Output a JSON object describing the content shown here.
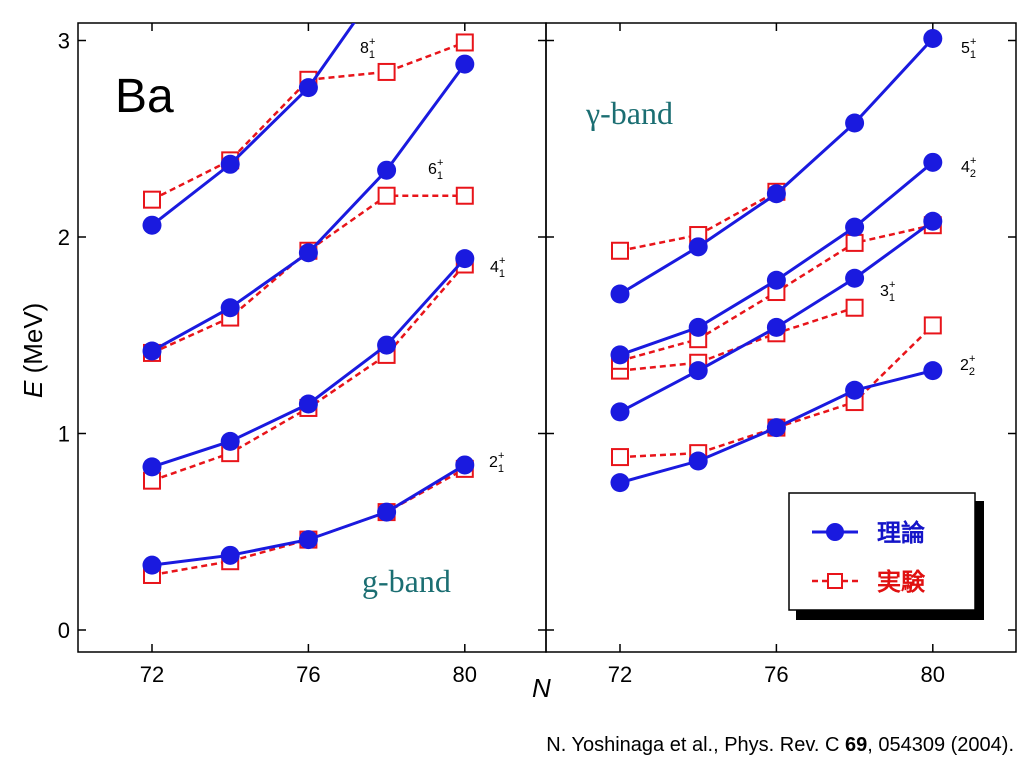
{
  "chart_data": [
    {
      "type": "line",
      "element_label": "Ba",
      "band_label": "g-band",
      "xlabel": "N",
      "ylabel_italic": "E",
      "ylabel_unit": " (MeV)",
      "x_ticks": [
        72,
        76,
        80
      ],
      "y_ticks": [
        0,
        1,
        2,
        3
      ],
      "xlim": [
        70,
        82
      ],
      "ylim": [
        -0.1,
        3.05
      ],
      "series": [
        {
          "state": "2_1^+",
          "label_main": "2",
          "label_sub": "1",
          "label_sup": "+",
          "kind": "theory",
          "x": [
            72,
            74,
            76,
            78,
            80
          ],
          "y": [
            0.33,
            0.38,
            0.46,
            0.6,
            0.84
          ]
        },
        {
          "state": "2_1^+",
          "kind": "experiment",
          "x": [
            72,
            74,
            76,
            78,
            80
          ],
          "y": [
            0.28,
            0.35,
            0.46,
            0.6,
            0.82
          ]
        },
        {
          "state": "4_1^+",
          "label_main": "4",
          "label_sub": "1",
          "label_sup": "+",
          "kind": "theory",
          "x": [
            72,
            74,
            76,
            78,
            80
          ],
          "y": [
            0.83,
            0.96,
            1.15,
            1.45,
            1.89
          ]
        },
        {
          "state": "4_1^+",
          "kind": "experiment",
          "x": [
            72,
            74,
            76,
            78,
            80
          ],
          "y": [
            0.76,
            0.9,
            1.13,
            1.4,
            1.86
          ]
        },
        {
          "state": "6_1^+",
          "label_main": "6",
          "label_sub": "1",
          "label_sup": "+",
          "kind": "theory",
          "x": [
            72,
            74,
            76,
            78,
            80
          ],
          "y": [
            1.42,
            1.64,
            1.92,
            2.34,
            2.88
          ]
        },
        {
          "state": "6_1^+",
          "kind": "experiment",
          "x": [
            72,
            74,
            76,
            78,
            80
          ],
          "y": [
            1.41,
            1.59,
            1.93,
            2.21,
            2.21
          ]
        },
        {
          "state": "8_1^+",
          "label_main": "8",
          "label_sub": "1",
          "label_sup": "+",
          "kind": "theory",
          "x": [
            72,
            74,
            76,
            77.2
          ],
          "y": [
            2.06,
            2.37,
            2.76,
            3.1
          ]
        },
        {
          "state": "8_1^+",
          "kind": "experiment",
          "x": [
            72,
            74,
            76,
            78,
            80
          ],
          "y": [
            2.19,
            2.39,
            2.8,
            2.84,
            2.99
          ]
        }
      ]
    },
    {
      "type": "line",
      "band_label": "γ-band",
      "x_ticks": [
        72,
        76,
        80
      ],
      "xlim": [
        70,
        82
      ],
      "ylim": [
        -0.1,
        3.05
      ],
      "series": [
        {
          "state": "2_2^+",
          "label_main": "2",
          "label_sub": "2",
          "label_sup": "+",
          "kind": "theory",
          "x": [
            72,
            74,
            76,
            78,
            80
          ],
          "y": [
            0.75,
            0.86,
            1.03,
            1.22,
            1.32
          ]
        },
        {
          "state": "2_2^+",
          "kind": "experiment",
          "x": [
            72,
            74,
            76,
            78,
            80
          ],
          "y": [
            0.88,
            0.9,
            1.03,
            1.16,
            1.55
          ]
        },
        {
          "state": "3_1^+",
          "label_main": "3",
          "label_sub": "1",
          "label_sup": "+",
          "kind": "theory",
          "x": [
            72,
            74,
            76,
            78,
            80
          ],
          "y": [
            1.11,
            1.32,
            1.54,
            1.79,
            2.08
          ]
        },
        {
          "state": "3_1^+",
          "kind": "experiment",
          "x": [
            72,
            74,
            76,
            78
          ],
          "y": [
            1.32,
            1.36,
            1.51,
            1.64
          ]
        },
        {
          "state": "4_2^+",
          "label_main": "4",
          "label_sub": "2",
          "label_sup": "+",
          "kind": "theory",
          "x": [
            72,
            74,
            76,
            78,
            80
          ],
          "y": [
            1.4,
            1.54,
            1.78,
            2.05,
            2.38
          ]
        },
        {
          "state": "4_2^+",
          "kind": "experiment",
          "x": [
            72,
            74,
            76,
            78,
            80
          ],
          "y": [
            1.37,
            1.48,
            1.72,
            1.97,
            2.06
          ]
        },
        {
          "state": "5_1^+",
          "label_main": "5",
          "label_sub": "1",
          "label_sup": "+",
          "kind": "theory",
          "x": [
            72,
            74,
            76,
            78,
            80
          ],
          "y": [
            1.71,
            1.95,
            2.22,
            2.58,
            3.01
          ]
        },
        {
          "state": "5_1^+",
          "kind": "experiment",
          "x": [
            72,
            74,
            76
          ],
          "y": [
            1.93,
            2.01,
            2.23
          ]
        }
      ],
      "legend": {
        "placement": "bottom-right",
        "theory_label": "理論",
        "experiment_label": "実験"
      }
    }
  ],
  "colors": {
    "theory": "#1a1adf",
    "experiment": "#e8141a",
    "band_label": "#1b6e72",
    "legend_theory_text": "#1414c8",
    "legend_experiment_text": "#e01010"
  },
  "citation": {
    "authors": "N. Yoshinaga et al., Phys. Rev. C ",
    "volume": "69",
    "rest": ", 054309 (2004)."
  }
}
